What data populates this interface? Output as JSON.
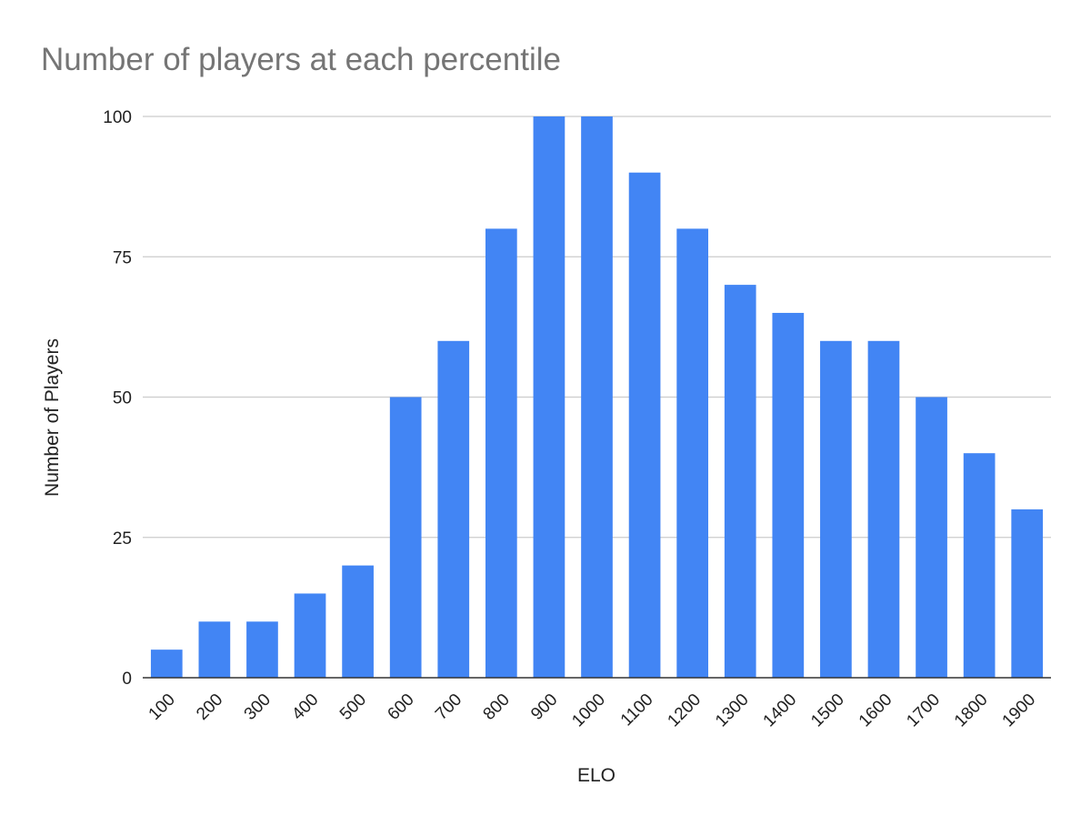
{
  "chart_data": {
    "type": "bar",
    "title": "Number of players at each percentile",
    "xlabel": "ELO",
    "ylabel": "Number of Players",
    "categories": [
      "100",
      "200",
      "300",
      "400",
      "500",
      "600",
      "700",
      "800",
      "900",
      "1000",
      "1100",
      "1200",
      "1300",
      "1400",
      "1500",
      "1600",
      "1700",
      "1800",
      "1900"
    ],
    "values": [
      5,
      10,
      10,
      15,
      20,
      50,
      60,
      80,
      100,
      100,
      90,
      80,
      70,
      65,
      60,
      60,
      50,
      40,
      30
    ],
    "ylim": [
      0,
      100
    ],
    "yticks": [
      "0",
      "25",
      "50",
      "75",
      "100"
    ],
    "grid": true,
    "legend": "none",
    "bar_color": "#4285f4"
  }
}
